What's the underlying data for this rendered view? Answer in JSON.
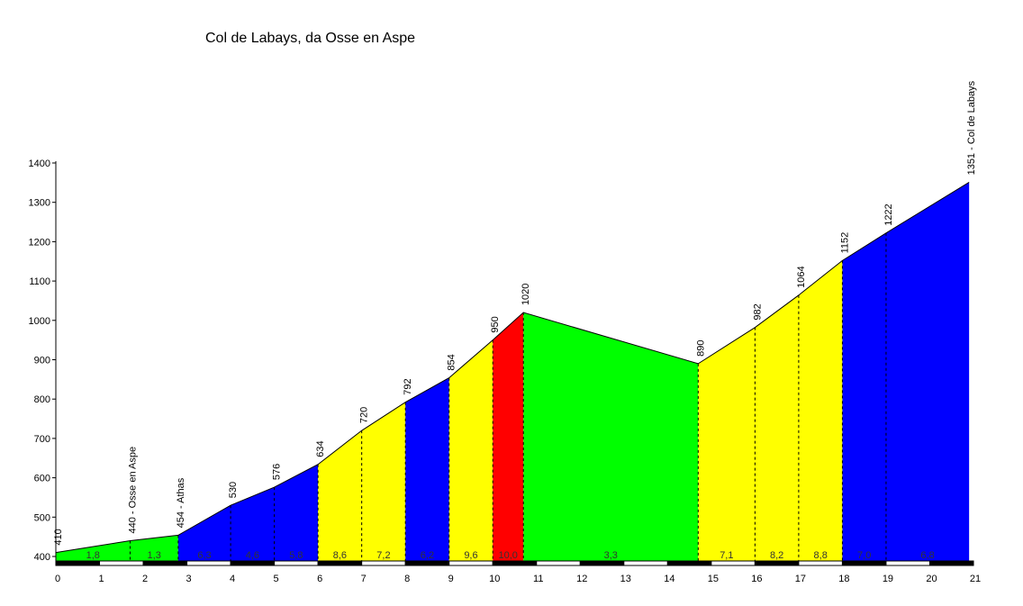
{
  "chart_data": {
    "type": "area",
    "title": "Col de Labays, da Osse en Aspe",
    "xlabel": "",
    "ylabel": "",
    "xlim": [
      0,
      21
    ],
    "ylim": [
      400,
      1400
    ],
    "x_ticks": [
      "0",
      "1",
      "2",
      "3",
      "4",
      "5",
      "6",
      "7",
      "8",
      "9",
      "10",
      "11",
      "12",
      "13",
      "14",
      "15",
      "16",
      "17",
      "18",
      "19",
      "20",
      "21"
    ],
    "y_ticks": [
      "400",
      "500",
      "600",
      "700",
      "800",
      "900",
      "1000",
      "1100",
      "1200",
      "1300",
      "1400"
    ],
    "profile": [
      {
        "x": 0,
        "y": 410,
        "label": "410"
      },
      {
        "x": 1.7,
        "y": 440,
        "label": "440 - Osse en Aspe"
      },
      {
        "x": 2.8,
        "y": 454,
        "label": "454 - Athas"
      },
      {
        "x": 4,
        "y": 530,
        "label": "530"
      },
      {
        "x": 5,
        "y": 576,
        "label": "576"
      },
      {
        "x": 6,
        "y": 634,
        "label": "634"
      },
      {
        "x": 7,
        "y": 720,
        "label": "720"
      },
      {
        "x": 8,
        "y": 792,
        "label": "792"
      },
      {
        "x": 9,
        "y": 854,
        "label": "854"
      },
      {
        "x": 10,
        "y": 950,
        "label": "950"
      },
      {
        "x": 10.7,
        "y": 1020,
        "label": "1020"
      },
      {
        "x": 14.7,
        "y": 890,
        "label": "890"
      },
      {
        "x": 16,
        "y": 982,
        "label": "982"
      },
      {
        "x": 17,
        "y": 1064,
        "label": "1064"
      },
      {
        "x": 18,
        "y": 1152,
        "label": "1152"
      },
      {
        "x": 19,
        "y": 1222,
        "label": "1222"
      },
      {
        "x": 20.9,
        "y": 1351,
        "label": "1351 - Col de Labays"
      }
    ],
    "segments": [
      {
        "x0": 0,
        "x1": 2.8,
        "gradient": "1,8 / 1,3",
        "color": "#00ff00"
      },
      {
        "x0": 2.8,
        "x1": 6,
        "color": "#0000ff"
      },
      {
        "x0": 6,
        "x1": 8,
        "color": "#ffff00"
      },
      {
        "x0": 8,
        "x1": 9,
        "color": "#0000ff"
      },
      {
        "x0": 9,
        "x1": 10,
        "color": "#ffff00"
      },
      {
        "x0": 10,
        "x1": 10.7,
        "color": "#ff0000"
      },
      {
        "x0": 10.7,
        "x1": 14.7,
        "color": "#00ff00"
      },
      {
        "x0": 14.7,
        "x1": 18,
        "color": "#ffff00"
      },
      {
        "x0": 18,
        "x1": 20.9,
        "color": "#0000ff"
      }
    ],
    "gradient_labels": [
      {
        "x": 0.85,
        "label": "1,8"
      },
      {
        "x": 2.25,
        "label": "1,3"
      },
      {
        "x": 3.4,
        "label": "6,3"
      },
      {
        "x": 4.5,
        "label": "4,6"
      },
      {
        "x": 5.5,
        "label": "5,8"
      },
      {
        "x": 6.5,
        "label": "8,6"
      },
      {
        "x": 7.5,
        "label": "7,2"
      },
      {
        "x": 8.5,
        "label": "6,2"
      },
      {
        "x": 9.5,
        "label": "9,6"
      },
      {
        "x": 10.35,
        "label": "10,0"
      },
      {
        "x": 12.7,
        "label": "3,3"
      },
      {
        "x": 15.35,
        "label": "7,1"
      },
      {
        "x": 16.5,
        "label": "8,2"
      },
      {
        "x": 17.5,
        "label": "8,8"
      },
      {
        "x": 18.5,
        "label": "7,0"
      },
      {
        "x": 19.95,
        "label": "6,8"
      }
    ],
    "grid": false,
    "legend": "none"
  }
}
